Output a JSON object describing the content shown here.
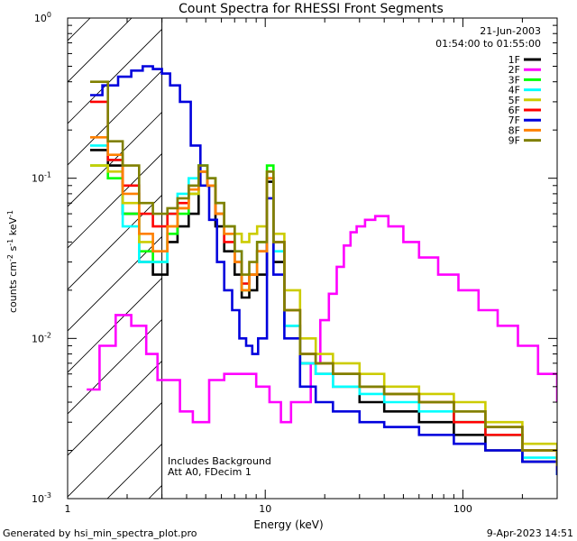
{
  "chart_data": {
    "type": "line",
    "title": "Count Spectra for RHESSI Front Segments",
    "xlabel": "Energy (keV)",
    "ylabel": "counts cm-2 s-1 keV-1",
    "xscale": "log",
    "yscale": "log",
    "xlim": [
      1,
      300
    ],
    "ylim": [
      0.001,
      1
    ],
    "x_tick_labels": [
      "1",
      "10",
      "100"
    ],
    "y_tick_labels": [
      {
        "base": "10",
        "exp": "-3"
      },
      {
        "base": "10",
        "exp": "-2"
      },
      {
        "base": "10",
        "exp": "-1"
      },
      {
        "base": "10",
        "exp": "0"
      }
    ],
    "hatched_region_keV": [
      1,
      3
    ],
    "date": "21-Jun-2003",
    "time_range": "01:54:00 to 01:55:00",
    "annotation_lines": [
      "Includes Background",
      "Att A0, FDecim 1"
    ],
    "footer_left": "Generated by hsi_min_spectra_plot.pro",
    "footer_right": "9-Apr-2023 14:51",
    "series": [
      {
        "name": "1F",
        "color": "#000000",
        "points": [
          [
            1.3,
            0.15
          ],
          [
            1.6,
            0.12
          ],
          [
            1.9,
            0.06
          ],
          [
            2.3,
            0.03
          ],
          [
            2.7,
            0.025
          ],
          [
            3.2,
            0.04
          ],
          [
            3.6,
            0.05
          ],
          [
            4.1,
            0.06
          ],
          [
            4.6,
            0.11
          ],
          [
            5.1,
            0.09
          ],
          [
            5.6,
            0.05
          ],
          [
            6.2,
            0.035
          ],
          [
            7.0,
            0.025
          ],
          [
            7.6,
            0.018
          ],
          [
            8.3,
            0.02
          ],
          [
            9.1,
            0.025
          ],
          [
            10.2,
            0.095
          ],
          [
            11.0,
            0.03
          ],
          [
            12.5,
            0.012
          ],
          [
            15,
            0.007
          ],
          [
            18,
            0.006
          ],
          [
            22,
            0.005
          ],
          [
            30,
            0.004
          ],
          [
            40,
            0.0035
          ],
          [
            60,
            0.003
          ],
          [
            90,
            0.0025
          ],
          [
            130,
            0.002
          ],
          [
            200,
            0.0017
          ],
          [
            300,
            0.0014
          ]
        ]
      },
      {
        "name": "2F",
        "color": "#ff00ff",
        "points": [
          [
            1.25,
            0.0048
          ],
          [
            1.45,
            0.009
          ],
          [
            1.75,
            0.014
          ],
          [
            2.1,
            0.012
          ],
          [
            2.5,
            0.008
          ],
          [
            2.85,
            0.0055
          ],
          [
            3.2,
            0.0055
          ],
          [
            3.7,
            0.0035
          ],
          [
            4.3,
            0.003
          ],
          [
            5.2,
            0.0055
          ],
          [
            6.2,
            0.006
          ],
          [
            7.5,
            0.006
          ],
          [
            9.0,
            0.005
          ],
          [
            10.5,
            0.004
          ],
          [
            12,
            0.003
          ],
          [
            13.5,
            0.004
          ],
          [
            15,
            0.004
          ],
          [
            17,
            0.007
          ],
          [
            19,
            0.013
          ],
          [
            21,
            0.019
          ],
          [
            23,
            0.028
          ],
          [
            25,
            0.038
          ],
          [
            27,
            0.046
          ],
          [
            29,
            0.05
          ],
          [
            32,
            0.055
          ],
          [
            36,
            0.058
          ],
          [
            42,
            0.05
          ],
          [
            50,
            0.04
          ],
          [
            60,
            0.032
          ],
          [
            75,
            0.025
          ],
          [
            95,
            0.02
          ],
          [
            120,
            0.015
          ],
          [
            150,
            0.012
          ],
          [
            190,
            0.009
          ],
          [
            240,
            0.006
          ],
          [
            300,
            0.004
          ]
        ]
      },
      {
        "name": "3F",
        "color": "#00ff00",
        "points": [
          [
            1.3,
            0.12
          ],
          [
            1.6,
            0.1
          ],
          [
            1.9,
            0.06
          ],
          [
            2.3,
            0.035
          ],
          [
            2.7,
            0.03
          ],
          [
            3.2,
            0.045
          ],
          [
            3.6,
            0.06
          ],
          [
            4.1,
            0.08
          ],
          [
            4.6,
            0.12
          ],
          [
            5.1,
            0.09
          ],
          [
            5.6,
            0.06
          ],
          [
            6.2,
            0.045
          ],
          [
            7.0,
            0.03
          ],
          [
            7.6,
            0.02
          ],
          [
            8.3,
            0.025
          ],
          [
            9.1,
            0.04
          ],
          [
            10.2,
            0.12
          ],
          [
            11.0,
            0.04
          ],
          [
            12.5,
            0.015
          ],
          [
            15,
            0.008
          ],
          [
            18,
            0.007
          ],
          [
            22,
            0.006
          ],
          [
            30,
            0.005
          ],
          [
            40,
            0.0045
          ],
          [
            60,
            0.004
          ],
          [
            90,
            0.003
          ],
          [
            130,
            0.0025
          ],
          [
            200,
            0.002
          ],
          [
            300,
            0.0016
          ]
        ]
      },
      {
        "name": "4F",
        "color": "#00ffff",
        "points": [
          [
            1.3,
            0.16
          ],
          [
            1.6,
            0.13
          ],
          [
            1.9,
            0.05
          ],
          [
            2.3,
            0.03
          ],
          [
            2.7,
            0.03
          ],
          [
            3.2,
            0.06
          ],
          [
            3.6,
            0.08
          ],
          [
            4.1,
            0.1
          ],
          [
            4.6,
            0.12
          ],
          [
            5.1,
            0.1
          ],
          [
            5.6,
            0.07
          ],
          [
            6.2,
            0.05
          ],
          [
            7.0,
            0.035
          ],
          [
            7.6,
            0.022
          ],
          [
            8.3,
            0.025
          ],
          [
            9.1,
            0.035
          ],
          [
            10.2,
            0.1
          ],
          [
            11.0,
            0.035
          ],
          [
            12.5,
            0.012
          ],
          [
            15,
            0.007
          ],
          [
            18,
            0.006
          ],
          [
            22,
            0.005
          ],
          [
            30,
            0.0045
          ],
          [
            40,
            0.004
          ],
          [
            60,
            0.0035
          ],
          [
            90,
            0.003
          ],
          [
            130,
            0.0025
          ],
          [
            200,
            0.0018
          ],
          [
            300,
            0.0014
          ]
        ]
      },
      {
        "name": "5F",
        "color": "#cccc00",
        "points": [
          [
            1.3,
            0.12
          ],
          [
            1.6,
            0.11
          ],
          [
            1.9,
            0.07
          ],
          [
            2.3,
            0.04
          ],
          [
            2.7,
            0.035
          ],
          [
            3.2,
            0.05
          ],
          [
            3.6,
            0.065
          ],
          [
            4.1,
            0.08
          ],
          [
            4.6,
            0.11
          ],
          [
            5.1,
            0.1
          ],
          [
            5.6,
            0.07
          ],
          [
            6.2,
            0.05
          ],
          [
            7.0,
            0.045
          ],
          [
            7.6,
            0.04
          ],
          [
            8.3,
            0.045
          ],
          [
            9.1,
            0.05
          ],
          [
            10.2,
            0.11
          ],
          [
            11.0,
            0.045
          ],
          [
            12.5,
            0.02
          ],
          [
            15,
            0.01
          ],
          [
            18,
            0.008
          ],
          [
            22,
            0.007
          ],
          [
            30,
            0.006
          ],
          [
            40,
            0.005
          ],
          [
            60,
            0.0045
          ],
          [
            90,
            0.004
          ],
          [
            130,
            0.003
          ],
          [
            200,
            0.0022
          ],
          [
            300,
            0.0016
          ]
        ]
      },
      {
        "name": "6F",
        "color": "#ff0000",
        "points": [
          [
            1.3,
            0.3
          ],
          [
            1.6,
            0.13
          ],
          [
            1.9,
            0.09
          ],
          [
            2.3,
            0.06
          ],
          [
            2.7,
            0.05
          ],
          [
            3.2,
            0.06
          ],
          [
            3.6,
            0.07
          ],
          [
            4.1,
            0.09
          ],
          [
            4.6,
            0.11
          ],
          [
            5.1,
            0.09
          ],
          [
            5.6,
            0.06
          ],
          [
            6.2,
            0.04
          ],
          [
            7.0,
            0.03
          ],
          [
            7.6,
            0.022
          ],
          [
            8.3,
            0.025
          ],
          [
            9.1,
            0.035
          ],
          [
            10.2,
            0.1
          ],
          [
            11.0,
            0.04
          ],
          [
            12.5,
            0.015
          ],
          [
            15,
            0.008
          ],
          [
            18,
            0.007
          ],
          [
            22,
            0.006
          ],
          [
            30,
            0.005
          ],
          [
            40,
            0.0045
          ],
          [
            60,
            0.004
          ],
          [
            90,
            0.003
          ],
          [
            130,
            0.0025
          ],
          [
            200,
            0.002
          ],
          [
            300,
            0.0015
          ]
        ]
      },
      {
        "name": "7F",
        "color": "#0000dd",
        "points": [
          [
            1.3,
            0.33
          ],
          [
            1.5,
            0.38
          ],
          [
            1.8,
            0.43
          ],
          [
            2.1,
            0.47
          ],
          [
            2.4,
            0.5
          ],
          [
            2.7,
            0.48
          ],
          [
            3.0,
            0.45
          ],
          [
            3.3,
            0.38
          ],
          [
            3.7,
            0.3
          ],
          [
            4.2,
            0.16
          ],
          [
            4.7,
            0.09
          ],
          [
            5.2,
            0.055
          ],
          [
            5.7,
            0.03
          ],
          [
            6.2,
            0.02
          ],
          [
            6.8,
            0.015
          ],
          [
            7.4,
            0.01
          ],
          [
            8.0,
            0.009
          ],
          [
            8.6,
            0.008
          ],
          [
            9.2,
            0.01
          ],
          [
            10.2,
            0.075
          ],
          [
            11.0,
            0.025
          ],
          [
            12.5,
            0.01
          ],
          [
            15,
            0.005
          ],
          [
            18,
            0.004
          ],
          [
            22,
            0.0035
          ],
          [
            30,
            0.003
          ],
          [
            40,
            0.0028
          ],
          [
            60,
            0.0025
          ],
          [
            90,
            0.0022
          ],
          [
            130,
            0.002
          ],
          [
            200,
            0.0017
          ],
          [
            300,
            0.0014
          ]
        ]
      },
      {
        "name": "8F",
        "color": "#ff8000",
        "points": [
          [
            1.3,
            0.18
          ],
          [
            1.6,
            0.14
          ],
          [
            1.9,
            0.08
          ],
          [
            2.3,
            0.045
          ],
          [
            2.7,
            0.035
          ],
          [
            3.2,
            0.05
          ],
          [
            3.6,
            0.065
          ],
          [
            4.1,
            0.085
          ],
          [
            4.6,
            0.11
          ],
          [
            5.1,
            0.09
          ],
          [
            5.6,
            0.06
          ],
          [
            6.2,
            0.045
          ],
          [
            7.0,
            0.03
          ],
          [
            7.6,
            0.02
          ],
          [
            8.3,
            0.025
          ],
          [
            9.1,
            0.035
          ],
          [
            10.2,
            0.1
          ],
          [
            11.0,
            0.04
          ],
          [
            12.5,
            0.015
          ],
          [
            15,
            0.008
          ],
          [
            18,
            0.007
          ],
          [
            22,
            0.006
          ],
          [
            30,
            0.005
          ],
          [
            40,
            0.0045
          ],
          [
            60,
            0.004
          ],
          [
            90,
            0.0035
          ],
          [
            130,
            0.0028
          ],
          [
            200,
            0.002
          ],
          [
            300,
            0.0016
          ]
        ]
      },
      {
        "name": "9F",
        "color": "#808000",
        "points": [
          [
            1.3,
            0.4
          ],
          [
            1.6,
            0.17
          ],
          [
            1.9,
            0.12
          ],
          [
            2.3,
            0.07
          ],
          [
            2.7,
            0.06
          ],
          [
            3.2,
            0.065
          ],
          [
            3.6,
            0.075
          ],
          [
            4.1,
            0.09
          ],
          [
            4.6,
            0.12
          ],
          [
            5.1,
            0.1
          ],
          [
            5.6,
            0.07
          ],
          [
            6.2,
            0.05
          ],
          [
            7.0,
            0.035
          ],
          [
            7.6,
            0.025
          ],
          [
            8.3,
            0.03
          ],
          [
            9.1,
            0.04
          ],
          [
            10.2,
            0.11
          ],
          [
            11.0,
            0.04
          ],
          [
            12.5,
            0.015
          ],
          [
            15,
            0.008
          ],
          [
            18,
            0.007
          ],
          [
            22,
            0.006
          ],
          [
            30,
            0.005
          ],
          [
            40,
            0.0045
          ],
          [
            60,
            0.004
          ],
          [
            90,
            0.0035
          ],
          [
            130,
            0.0028
          ],
          [
            200,
            0.002
          ],
          [
            300,
            0.0016
          ]
        ]
      }
    ]
  }
}
